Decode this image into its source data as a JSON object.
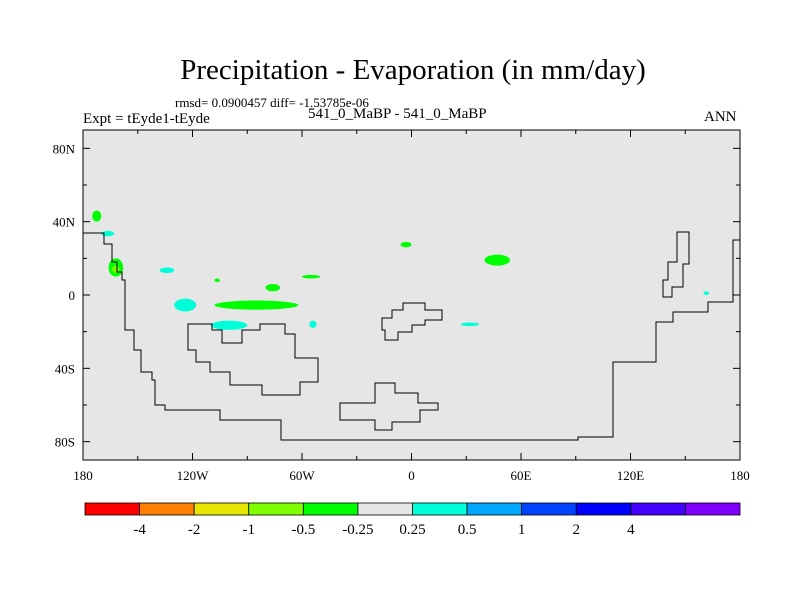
{
  "figure": {
    "title": "Precipitation - Evaporation (in mm/day)",
    "stats": "rmsd= 0.0900457 diff= -1.53785e-06",
    "left_label": "Expt = tEyde1-tEyde",
    "center_label": "541_0_MaBP - 541_0_MaBP",
    "right_label": "ANN"
  },
  "chart_data": {
    "type": "heatmap",
    "title": "Precipitation - Evaporation (in mm/day)",
    "xlabel": "",
    "ylabel": "",
    "xlim": [
      -180,
      180
    ],
    "ylim": [
      -90,
      90
    ],
    "x_ticks": [
      {
        "value": -180,
        "label": "180"
      },
      {
        "value": -120,
        "label": "120W"
      },
      {
        "value": -60,
        "label": "60W"
      },
      {
        "value": 0,
        "label": "0"
      },
      {
        "value": 60,
        "label": "60E"
      },
      {
        "value": 120,
        "label": "120E"
      },
      {
        "value": 180,
        "label": "180"
      }
    ],
    "y_ticks": [
      {
        "value": 80,
        "label": "80N"
      },
      {
        "value": 40,
        "label": "40N"
      },
      {
        "value": 0,
        "label": "0"
      },
      {
        "value": -40,
        "label": "40S"
      },
      {
        "value": -80,
        "label": "80S"
      }
    ],
    "background_color": "#e6e6e6",
    "colorbar": {
      "colors": [
        "#ff0000",
        "#ff8000",
        "#e6e600",
        "#80ff00",
        "#00ff00",
        "#e6e6e6",
        "#00ffd9",
        "#00a6ff",
        "#0044ff",
        "#0000ff",
        "#4400ff",
        "#8000ff"
      ],
      "levels": [
        "-4",
        "-2",
        "-1",
        "-0.5",
        "-0.25",
        "0.25",
        "0.5",
        "1",
        "2",
        "4"
      ]
    },
    "anomaly_regions": [
      {
        "class": "-0.5 to -0.25",
        "color": "#00ff00",
        "lon": [
          -175,
          -170
        ],
        "lat": [
          40,
          46
        ]
      },
      {
        "class": "0.25 to 0.5",
        "color": "#00ffd9",
        "lon": [
          -170,
          -163
        ],
        "lat": [
          32,
          35
        ]
      },
      {
        "class": "-0.5 to -0.25",
        "color": "#00ff00",
        "lon": [
          -166,
          -158
        ],
        "lat": [
          10,
          20
        ]
      },
      {
        "class": "-1 to -0.5",
        "color": "#80ff00",
        "lon": [
          -164,
          -160
        ],
        "lat": [
          12,
          16
        ]
      },
      {
        "class": "0.25 to 0.5",
        "color": "#00ffd9",
        "lon": [
          -138,
          -130
        ],
        "lat": [
          12,
          15
        ]
      },
      {
        "class": "-0.5 to -0.25",
        "color": "#00ff00",
        "lon": [
          -108,
          -105
        ],
        "lat": [
          7,
          9
        ]
      },
      {
        "class": "-0.5 to -0.25",
        "color": "#00ff00",
        "lon": [
          -80,
          -72
        ],
        "lat": [
          2,
          6
        ]
      },
      {
        "class": "0.25 to 0.5",
        "color": "#00ffd9",
        "lon": [
          -130,
          -118
        ],
        "lat": [
          -9,
          -2
        ]
      },
      {
        "class": "-0.5 to -0.25",
        "color": "#00ff00",
        "lon": [
          -108,
          -62
        ],
        "lat": [
          -8,
          -3
        ]
      },
      {
        "class": "0.25 to 0.5",
        "color": "#00ffd9",
        "lon": [
          -110,
          -90
        ],
        "lat": [
          -19,
          -14
        ]
      },
      {
        "class": "-0.5 to -0.25",
        "color": "#00ff00",
        "lon": [
          -60,
          -50
        ],
        "lat": [
          9,
          11
        ]
      },
      {
        "class": "0.25 to 0.5",
        "color": "#00ffd9",
        "lon": [
          -56,
          -52
        ],
        "lat": [
          -18,
          -14
        ]
      },
      {
        "class": "-0.5 to -0.25",
        "color": "#00ff00",
        "lon": [
          -6,
          0
        ],
        "lat": [
          26,
          29
        ]
      },
      {
        "class": "-0.5 to -0.25",
        "color": "#00ff00",
        "lon": [
          40,
          54
        ],
        "lat": [
          16,
          22
        ]
      },
      {
        "class": "0.25 to 0.5",
        "color": "#00ffd9",
        "lon": [
          27,
          37
        ],
        "lat": [
          -17,
          -15
        ]
      },
      {
        "class": "0.25 to 0.5",
        "color": "#00ffd9",
        "lon": [
          160,
          163
        ],
        "lat": [
          0,
          2
        ]
      }
    ]
  }
}
